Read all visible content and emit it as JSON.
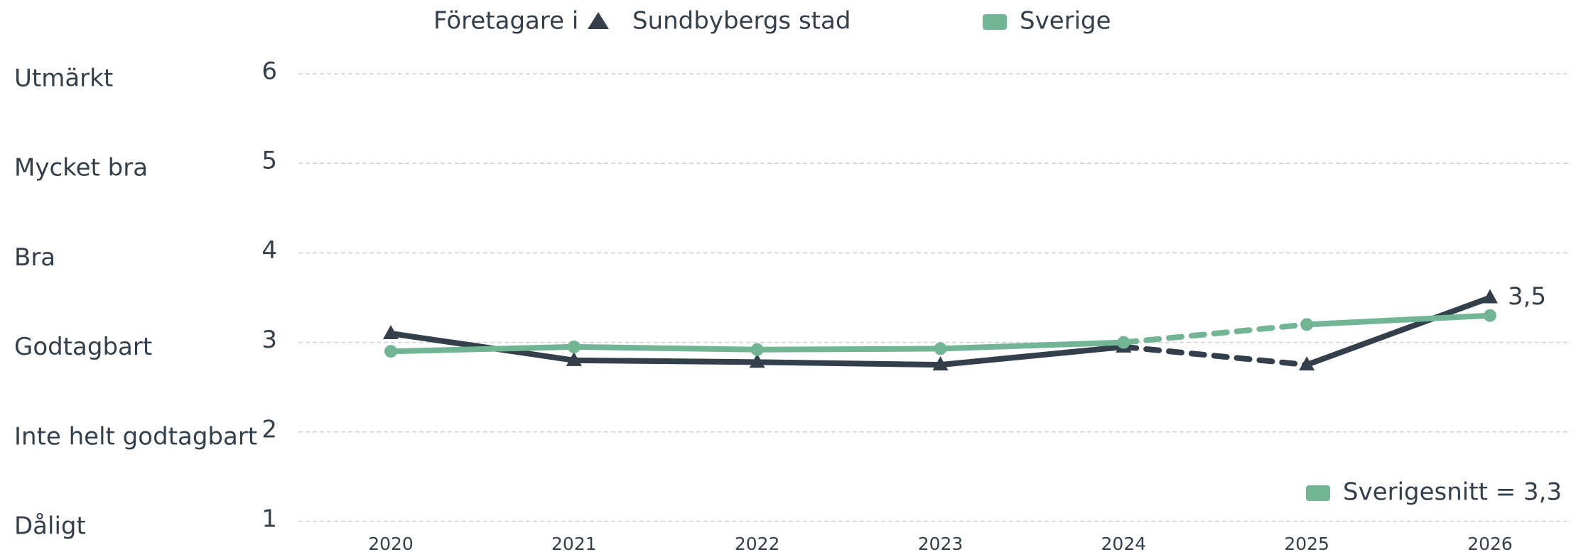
{
  "chart_data": {
    "type": "line",
    "legend_title": "Företagare i",
    "categories": [
      "2020",
      "2021",
      "2022",
      "2023",
      "2024",
      "2025",
      "2026"
    ],
    "series": [
      {
        "name": "Sundbybergs stad",
        "color": "#333f4b",
        "marker": "triangle",
        "dashed_segments": [
          4
        ],
        "values": [
          3.1,
          2.8,
          2.78,
          2.75,
          2.95,
          2.75,
          3.5
        ],
        "value_labels": [
          null,
          null,
          null,
          null,
          null,
          null,
          "3,5"
        ]
      },
      {
        "name": "Sverige",
        "color": "#72b595",
        "marker": "circle",
        "dashed_segments": [
          4
        ],
        "values": [
          2.9,
          2.95,
          2.92,
          2.93,
          3.0,
          3.2,
          3.3
        ]
      }
    ],
    "ylim": [
      1,
      6
    ],
    "yticks": [
      1,
      2,
      3,
      4,
      5,
      6
    ],
    "ytick_names": [
      "Dåligt",
      "Inte helt godtagbart",
      "Godtagbart",
      "Bra",
      "Mycket bra",
      "Utmärkt"
    ],
    "grid": true,
    "annotation": {
      "text": "Sverigesnitt = 3,3",
      "color": "#72b595"
    }
  }
}
